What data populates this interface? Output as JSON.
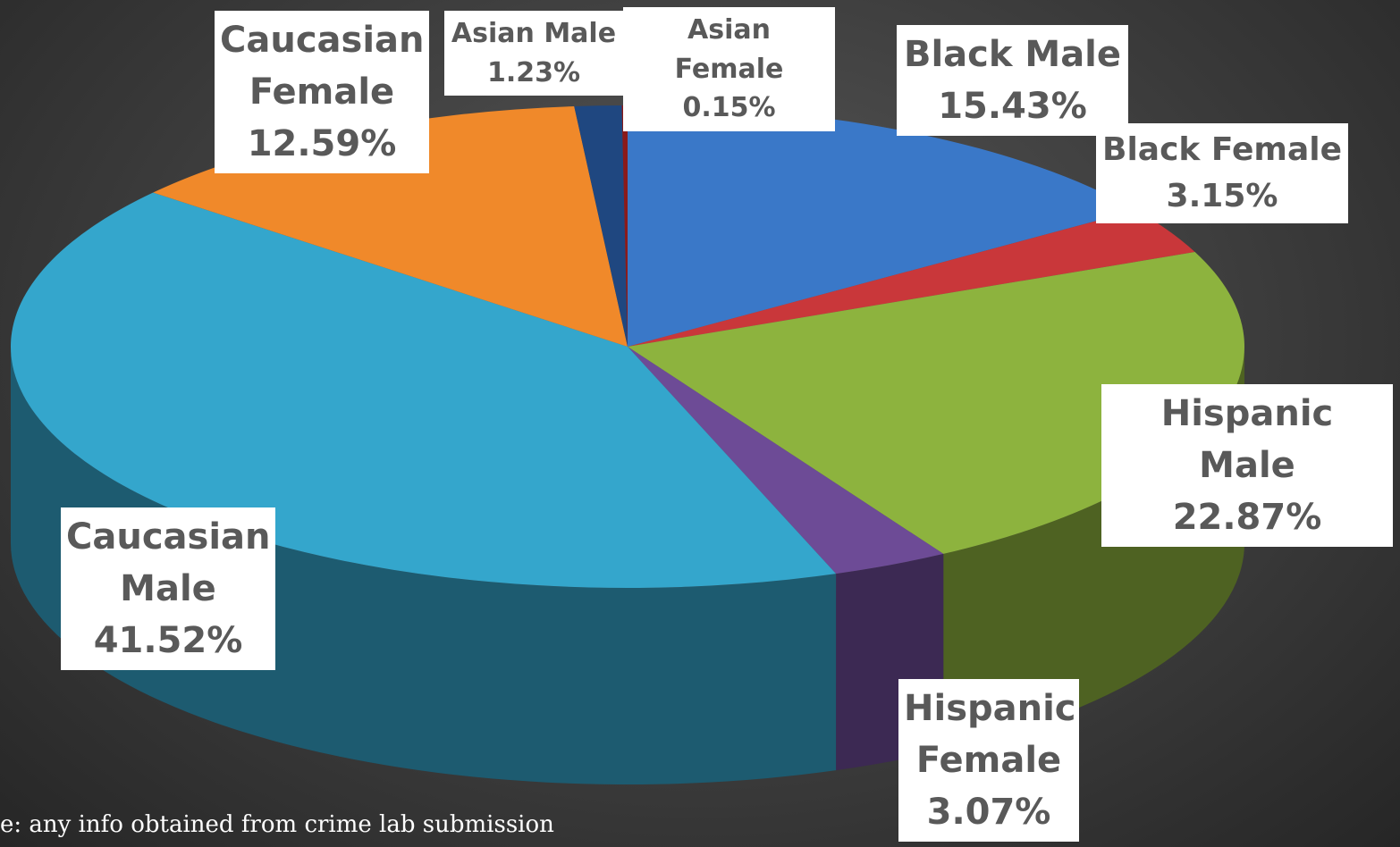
{
  "chart_data": {
    "type": "pie",
    "categories": [
      "Black Male",
      "Black Female",
      "Hispanic Male",
      "Hispanic Female",
      "Caucasian Male",
      "Caucasian Female",
      "Asian Male",
      "Asian Female"
    ],
    "values": [
      15.43,
      3.15,
      22.87,
      3.07,
      41.52,
      12.59,
      1.23,
      0.15
    ],
    "value_labels": [
      "15.43%",
      "3.15%",
      "22.87%",
      "3.07%",
      "41.52%",
      "12.59%",
      "1.23%",
      "0.15%"
    ],
    "colors": [
      "#3a78c8",
      "#c9373a",
      "#8db33e",
      "#6d4b96",
      "#34a6cc",
      "#f0892a",
      "#1f4780",
      "#8b1a1a"
    ],
    "footnote": "e:  any info obtained from crime lab submission"
  }
}
